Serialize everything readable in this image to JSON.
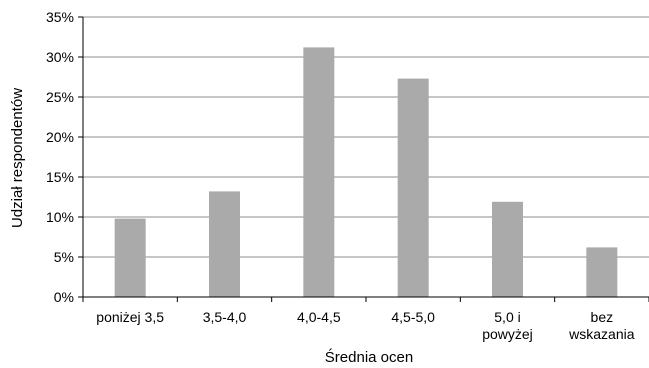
{
  "chart_data": {
    "type": "bar",
    "title": "",
    "xlabel": "Średnia ocen",
    "ylabel": "Udział respondentów",
    "categories": [
      [
        "poniżej 3,5"
      ],
      [
        "3,5-4,0"
      ],
      [
        "4,0-4,5"
      ],
      [
        "4,5-5,0"
      ],
      [
        "5,0 i",
        "powyżej"
      ],
      [
        "bez",
        "wskazania"
      ]
    ],
    "values": [
      9.8,
      13.2,
      31.2,
      27.3,
      11.9,
      6.2
    ],
    "ylim": [
      0,
      35
    ],
    "yticks": [
      0,
      5,
      10,
      15,
      20,
      25,
      30,
      35
    ],
    "ytick_labels": [
      "0%",
      "5%",
      "10%",
      "15%",
      "20%",
      "25%",
      "30%",
      "35%"
    ],
    "grid": true,
    "legend": "none",
    "colors": {
      "bar": "#aaaaaa",
      "grid": "#b3b3b3",
      "axis": "#000000"
    }
  }
}
